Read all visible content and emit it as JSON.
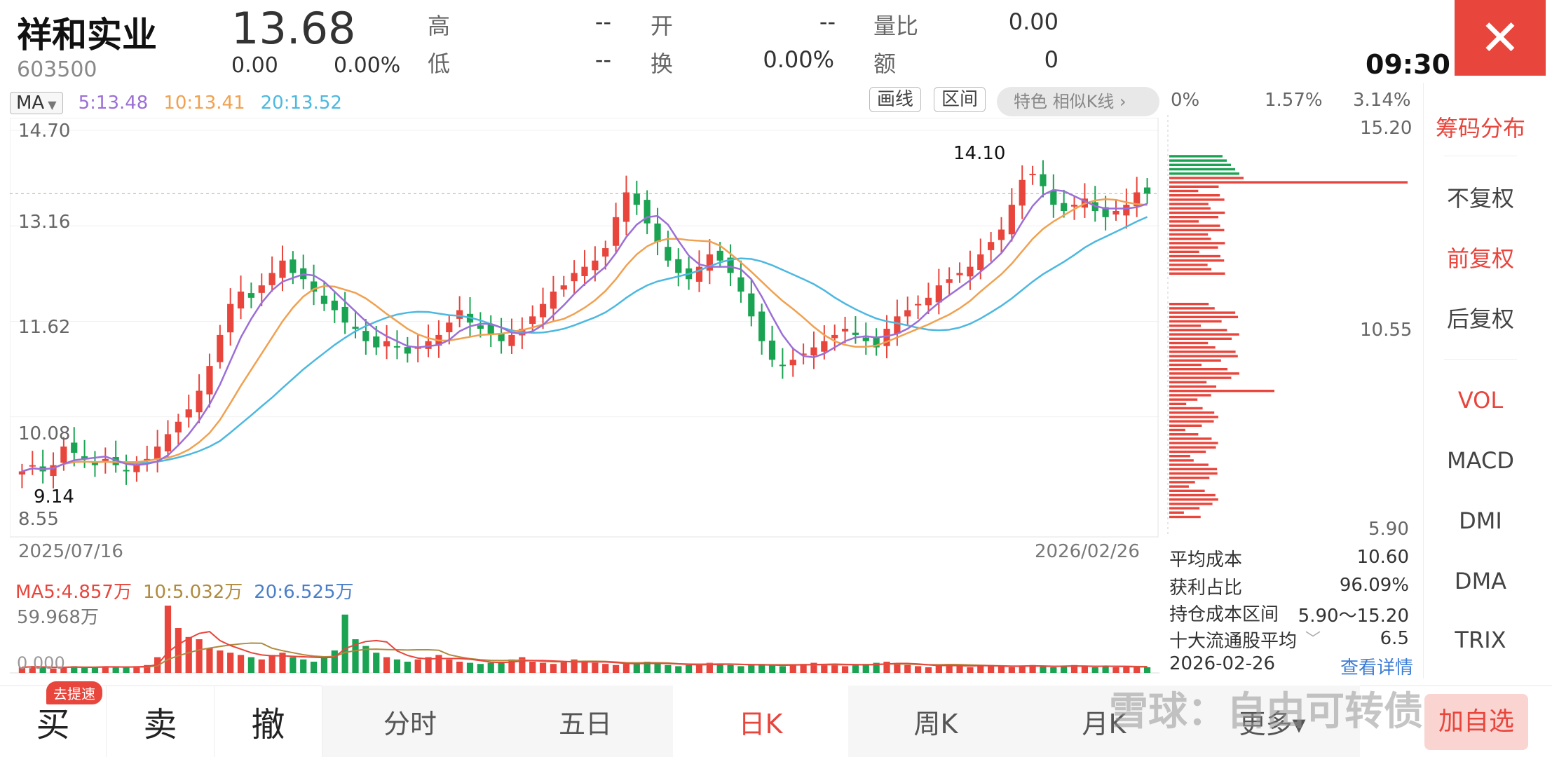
{
  "header": {
    "name": "祥和实业",
    "code": "603500",
    "price": "13.68",
    "change": "0.00",
    "change_pct": "0.00%",
    "quotes": [
      {
        "label": "高",
        "value": "--"
      },
      {
        "label": "开",
        "value": "--"
      },
      {
        "label": "量比",
        "value": "0.00"
      },
      {
        "label": "低",
        "value": "--"
      },
      {
        "label": "换",
        "value": "0.00%"
      },
      {
        "label": "额",
        "value": "0"
      }
    ],
    "time": "09:30",
    "close_icon": "close-icon"
  },
  "ma_bar": {
    "selector": "MA",
    "ma5": "5:13.48",
    "ma10": "10:13.41",
    "ma20": "20:13.52",
    "draw_button": "画线",
    "range_button": "区间",
    "feature": "特色  相似K线 ›"
  },
  "chart_labels": {
    "y_ticks": [
      "14.70",
      "13.16",
      "11.62",
      "10.08",
      "8.55"
    ],
    "x_start": "2025/07/16",
    "x_end": "2026/02/26",
    "high_marker": "14.10",
    "low_marker": "9.14"
  },
  "chart_data": {
    "type": "candlestick",
    "y_range": [
      8.55,
      14.7
    ],
    "high": 14.1,
    "low": 9.14,
    "last_close": 13.68,
    "colors": {
      "up": "#e8453c",
      "down": "#1aa352",
      "ma5": "#9b6fd6",
      "ma10": "#f0a150",
      "ma20": "#4cb8e0"
    },
    "approx_closes": [
      9.2,
      9.3,
      9.2,
      9.3,
      9.6,
      9.5,
      9.4,
      9.3,
      9.4,
      9.3,
      9.2,
      9.3,
      9.4,
      9.6,
      9.8,
      10.0,
      10.2,
      10.5,
      10.9,
      11.4,
      11.9,
      12.1,
      12.0,
      12.2,
      12.4,
      12.6,
      12.4,
      12.3,
      12.1,
      11.9,
      11.8,
      11.6,
      11.5,
      11.3,
      11.2,
      11.3,
      11.2,
      11.1,
      11.2,
      11.3,
      11.4,
      11.6,
      11.8,
      11.6,
      11.5,
      11.4,
      11.3,
      11.4,
      11.5,
      11.7,
      11.9,
      12.1,
      12.2,
      12.4,
      12.5,
      12.6,
      12.8,
      13.3,
      13.7,
      13.5,
      13.2,
      12.9,
      12.6,
      12.4,
      12.3,
      12.5,
      12.7,
      12.6,
      12.4,
      12.1,
      11.7,
      11.3,
      11.0,
      10.9,
      11.0,
      11.1,
      11.2,
      11.3,
      11.4,
      11.5,
      11.4,
      11.3,
      11.2,
      11.5,
      11.7,
      11.8,
      11.9,
      12.0,
      12.2,
      12.3,
      12.4,
      12.5,
      12.7,
      12.9,
      13.1,
      13.5,
      13.9,
      14.0,
      13.8,
      13.5,
      13.4,
      13.5,
      13.6,
      13.4,
      13.3,
      13.4,
      13.5,
      13.7,
      13.68
    ]
  },
  "volume": {
    "ma5": "MA5:4.857万",
    "ma10": "10:5.032万",
    "ma20": "20:6.525万",
    "max": "59.968万",
    "min": "0.000",
    "values": [
      5,
      6,
      5,
      4,
      5,
      6,
      5,
      5,
      6,
      5,
      5,
      6,
      7,
      14,
      60,
      40,
      32,
      30,
      22,
      20,
      18,
      16,
      14,
      12,
      16,
      18,
      14,
      12,
      10,
      14,
      20,
      52,
      30,
      24,
      18,
      14,
      12,
      10,
      12,
      14,
      16,
      12,
      10,
      9,
      8,
      9,
      10,
      12,
      14,
      10,
      9,
      8,
      10,
      12,
      10,
      9,
      8,
      7,
      8,
      9,
      10,
      8,
      7,
      6,
      7,
      8,
      9,
      8,
      7,
      6,
      7,
      8,
      7,
      6,
      7,
      8,
      9,
      8,
      7,
      6,
      7,
      8,
      9,
      10,
      8,
      7,
      6,
      5,
      7,
      8,
      6,
      5,
      6,
      7,
      6,
      5,
      6,
      7,
      6,
      5,
      6,
      7,
      6,
      5,
      6,
      5,
      6,
      5,
      5
    ]
  },
  "chip": {
    "pct_axis": [
      "0%",
      "1.57%",
      "3.14%"
    ],
    "price_axis": [
      "15.20",
      "10.55",
      "5.90"
    ],
    "rows": [
      {
        "label": "平均成本",
        "value": "10.60"
      },
      {
        "label": "获利占比",
        "value": "96.09%"
      },
      {
        "label": "持仓成本区间",
        "value": "5.90～15.20"
      },
      {
        "label": "十大流通股平均",
        "value": "6.5"
      }
    ],
    "date": "2026-02-26",
    "detail": "查看详情"
  },
  "sidebar": {
    "items": [
      "筹码分布",
      "不复权",
      "前复权",
      "后复权",
      "VOL",
      "MACD",
      "DMI",
      "DMA",
      "TRIX"
    ],
    "active": [
      "筹码分布",
      "前复权",
      "VOL"
    ]
  },
  "bottom_tabs": {
    "buy": "买",
    "buy_badge": "去提速",
    "sell": "卖",
    "cancel": "撤",
    "tabs": [
      "分时",
      "五日",
      "日K",
      "周K",
      "月K",
      "更多▾"
    ],
    "active_tab": "日K",
    "add": "加自选"
  },
  "watermark": "雪球：自由可转债"
}
